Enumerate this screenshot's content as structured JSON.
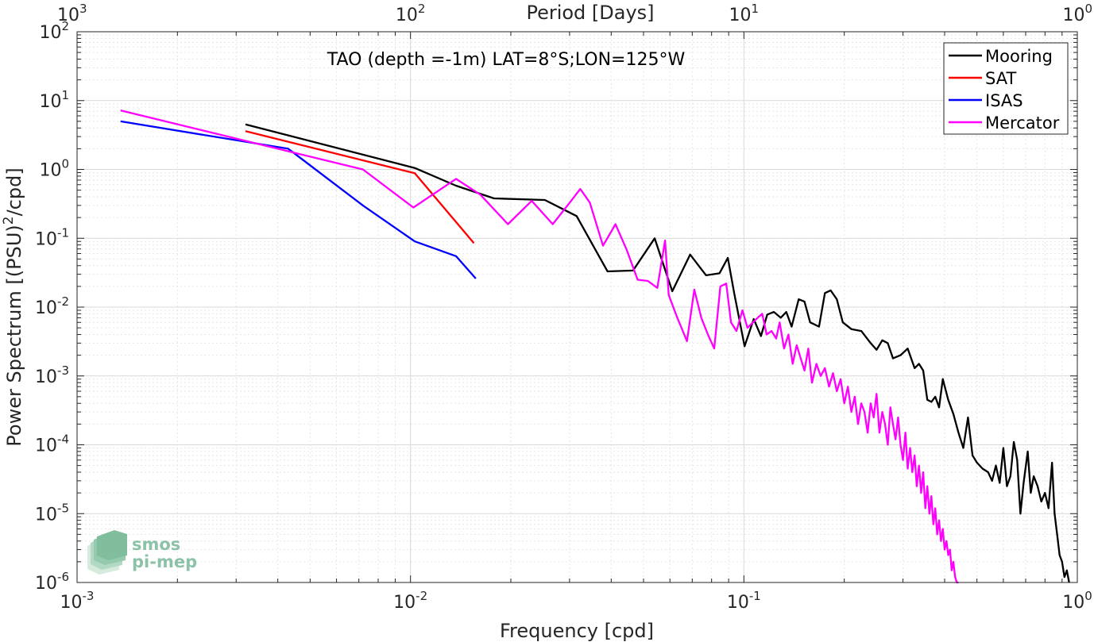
{
  "chart_data": {
    "type": "line",
    "title": "TAO (depth =-1m) LAT=8°S;LON=125°W",
    "xlabel": "Frequency [cpd]",
    "ylabel": "Power Spectrum [(PSU)",
    "ylabel_sup": "2",
    "ylabel_tail": "/cpd]",
    "x2label": "Period [Days]",
    "xscale": "log",
    "yscale": "log",
    "xlim": [
      0.001,
      1
    ],
    "ylim": [
      1e-06,
      100
    ],
    "grid": true,
    "legend_position": "top-right",
    "x_ticks": [
      {
        "base": "10",
        "exp": "-3"
      },
      {
        "base": "10",
        "exp": "-2"
      },
      {
        "base": "10",
        "exp": "-1"
      },
      {
        "base": "10",
        "exp": "0"
      }
    ],
    "y_ticks": [
      {
        "base": "10",
        "exp": "-6"
      },
      {
        "base": "10",
        "exp": "-5"
      },
      {
        "base": "10",
        "exp": "-4"
      },
      {
        "base": "10",
        "exp": "-3"
      },
      {
        "base": "10",
        "exp": "-2"
      },
      {
        "base": "10",
        "exp": "-1"
      },
      {
        "base": "10",
        "exp": "0"
      },
      {
        "base": "10",
        "exp": "1"
      },
      {
        "base": "10",
        "exp": "2"
      }
    ],
    "x2_ticks": [
      {
        "base": "10",
        "exp": "3"
      },
      {
        "base": "10",
        "exp": "2"
      },
      {
        "base": "10",
        "exp": "1"
      },
      {
        "base": "10",
        "exp": "0"
      }
    ],
    "series": [
      {
        "name": "Mooring",
        "color": "#000000",
        "points": [
          [
            0.0032,
            4.5
          ],
          [
            0.0103,
            1.05
          ],
          [
            0.0137,
            0.58
          ],
          [
            0.0178,
            0.38
          ],
          [
            0.0253,
            0.36
          ],
          [
            0.0315,
            0.21
          ],
          [
            0.039,
            0.033
          ],
          [
            0.0465,
            0.034
          ],
          [
            0.054,
            0.1
          ],
          [
            0.061,
            0.017
          ],
          [
            0.069,
            0.058
          ],
          [
            0.077,
            0.029
          ],
          [
            0.0845,
            0.031
          ],
          [
            0.0895,
            0.052
          ],
          [
            0.0935,
            0.016
          ],
          [
            0.1005,
            0.0027
          ],
          [
            0.107,
            0.0067
          ],
          [
            0.1125,
            0.0038
          ],
          [
            0.1175,
            0.0078
          ],
          [
            0.123,
            0.0085
          ],
          [
            0.129,
            0.007
          ],
          [
            0.134,
            0.0085
          ],
          [
            0.139,
            0.0052
          ],
          [
            0.146,
            0.013
          ],
          [
            0.152,
            0.012
          ],
          [
            0.158,
            0.006
          ],
          [
            0.168,
            0.0052
          ],
          [
            0.175,
            0.016
          ],
          [
            0.182,
            0.0175
          ],
          [
            0.19,
            0.013
          ],
          [
            0.198,
            0.006
          ],
          [
            0.21,
            0.0048
          ],
          [
            0.225,
            0.0045
          ],
          [
            0.24,
            0.003
          ],
          [
            0.25,
            0.0024
          ],
          [
            0.26,
            0.0033
          ],
          [
            0.27,
            0.003
          ],
          [
            0.28,
            0.0018
          ],
          [
            0.295,
            0.002
          ],
          [
            0.31,
            0.0025
          ],
          [
            0.325,
            0.0013
          ],
          [
            0.335,
            0.0015
          ],
          [
            0.345,
            0.0012
          ],
          [
            0.355,
            0.00045
          ],
          [
            0.365,
            0.00042
          ],
          [
            0.375,
            0.0005
          ],
          [
            0.385,
            0.00035
          ],
          [
            0.395,
            0.0009
          ],
          [
            0.41,
            0.00045
          ],
          [
            0.425,
            0.00028
          ],
          [
            0.44,
            0.00015
          ],
          [
            0.455,
            9e-05
          ],
          [
            0.47,
            0.00025
          ],
          [
            0.485,
            7e-05
          ],
          [
            0.5,
            5.5e-05
          ],
          [
            0.52,
            4.5e-05
          ],
          [
            0.54,
            4e-05
          ],
          [
            0.555,
            3e-05
          ],
          [
            0.57,
            5e-05
          ],
          [
            0.585,
            2.8e-05
          ],
          [
            0.6,
            9e-05
          ],
          [
            0.615,
            2.5e-05
          ],
          [
            0.63,
            3.5e-05
          ],
          [
            0.645,
            0.00011
          ],
          [
            0.66,
            6e-05
          ],
          [
            0.675,
            1e-05
          ],
          [
            0.69,
            2.8e-05
          ],
          [
            0.71,
            8e-05
          ],
          [
            0.725,
            2e-05
          ],
          [
            0.74,
            3.5e-05
          ],
          [
            0.76,
            2.5e-05
          ],
          [
            0.78,
            1.5e-05
          ],
          [
            0.8,
            2e-05
          ],
          [
            0.82,
            1.2e-05
          ],
          [
            0.84,
            5.5e-05
          ],
          [
            0.855,
            1e-05
          ],
          [
            0.87,
            5e-06
          ],
          [
            0.885,
            2.5e-06
          ],
          [
            0.9,
            2e-06
          ],
          [
            0.915,
            1.2e-06
          ],
          [
            0.93,
            1.5e-06
          ],
          [
            0.945,
            1e-06
          ]
        ]
      },
      {
        "name": "SAT",
        "color": "#ff0000",
        "points": [
          [
            0.0032,
            3.6
          ],
          [
            0.0103,
            0.88
          ],
          [
            0.0155,
            0.085
          ]
        ]
      },
      {
        "name": "ISAS",
        "color": "#0000ff",
        "points": [
          [
            0.00135,
            5.0
          ],
          [
            0.0043,
            2.0
          ],
          [
            0.0072,
            0.3
          ],
          [
            0.0103,
            0.09
          ],
          [
            0.0137,
            0.055
          ],
          [
            0.0157,
            0.026
          ]
        ]
      },
      {
        "name": "Mercator",
        "color": "#ff00ff",
        "points": [
          [
            0.00135,
            7.2
          ],
          [
            0.0072,
            1.0
          ],
          [
            0.0102,
            0.28
          ],
          [
            0.0137,
            0.73
          ],
          [
            0.0162,
            0.43
          ],
          [
            0.0196,
            0.16
          ],
          [
            0.0231,
            0.35
          ],
          [
            0.0267,
            0.16
          ],
          [
            0.0302,
            0.34
          ],
          [
            0.0323,
            0.52
          ],
          [
            0.0345,
            0.33
          ],
          [
            0.0378,
            0.078
          ],
          [
            0.0412,
            0.16
          ],
          [
            0.0445,
            0.068
          ],
          [
            0.048,
            0.025
          ],
          [
            0.0515,
            0.024
          ],
          [
            0.055,
            0.019
          ],
          [
            0.058,
            0.093
          ],
          [
            0.0595,
            0.015
          ],
          [
            0.063,
            0.0072
          ],
          [
            0.0675,
            0.0032
          ],
          [
            0.071,
            0.018
          ],
          [
            0.0745,
            0.007
          ],
          [
            0.078,
            0.004
          ],
          [
            0.0815,
            0.0025
          ],
          [
            0.085,
            0.02
          ],
          [
            0.0885,
            0.022
          ],
          [
            0.0915,
            0.006
          ],
          [
            0.095,
            0.0045
          ],
          [
            0.099,
            0.009
          ],
          [
            0.1025,
            0.005
          ],
          [
            0.1065,
            0.006
          ],
          [
            0.11,
            0.007
          ],
          [
            0.1135,
            0.008
          ],
          [
            0.117,
            0.004
          ],
          [
            0.121,
            0.0045
          ],
          [
            0.125,
            0.0035
          ],
          [
            0.128,
            0.006
          ],
          [
            0.132,
            0.0025
          ],
          [
            0.136,
            0.004
          ],
          [
            0.14,
            0.0015
          ],
          [
            0.144,
            0.0028
          ],
          [
            0.148,
            0.0018
          ],
          [
            0.152,
            0.0012
          ],
          [
            0.156,
            0.0025
          ],
          [
            0.16,
            0.0008
          ],
          [
            0.165,
            0.0015
          ],
          [
            0.17,
            0.001
          ],
          [
            0.175,
            0.0013
          ],
          [
            0.18,
            0.0007
          ],
          [
            0.185,
            0.0011
          ],
          [
            0.19,
            0.0006
          ],
          [
            0.195,
            0.0009
          ],
          [
            0.2,
            0.0004
          ],
          [
            0.205,
            0.0007
          ],
          [
            0.21,
            0.0003
          ],
          [
            0.215,
            0.0005
          ],
          [
            0.22,
            0.0002
          ],
          [
            0.225,
            0.0004
          ],
          [
            0.23,
            0.0003
          ],
          [
            0.235,
            0.00015
          ],
          [
            0.24,
            0.0004
          ],
          [
            0.245,
            0.00025
          ],
          [
            0.25,
            0.00055
          ],
          [
            0.255,
            0.00015
          ],
          [
            0.26,
            0.0003
          ],
          [
            0.265,
            0.0002
          ],
          [
            0.27,
            0.0001
          ],
          [
            0.275,
            0.00035
          ],
          [
            0.28,
            0.0002
          ],
          [
            0.285,
            0.00012
          ],
          [
            0.29,
            0.00025
          ],
          [
            0.295,
            0.0001
          ],
          [
            0.3,
            6e-05
          ],
          [
            0.305,
            0.00015
          ],
          [
            0.31,
            4.5e-05
          ],
          [
            0.315,
            9e-05
          ],
          [
            0.32,
            4e-05
          ],
          [
            0.325,
            7e-05
          ],
          [
            0.33,
            2.5e-05
          ],
          [
            0.335,
            5e-05
          ],
          [
            0.34,
            2e-05
          ],
          [
            0.345,
            4e-05
          ],
          [
            0.35,
            1.2e-05
          ],
          [
            0.355,
            2.5e-05
          ],
          [
            0.36,
            1e-05
          ],
          [
            0.365,
            1.8e-05
          ],
          [
            0.37,
            7e-06
          ],
          [
            0.375,
            1.2e-05
          ],
          [
            0.38,
            5e-06
          ],
          [
            0.385,
            8e-06
          ],
          [
            0.39,
            4e-06
          ],
          [
            0.395,
            6e-06
          ],
          [
            0.4,
            3e-06
          ],
          [
            0.405,
            4e-06
          ],
          [
            0.41,
            2.5e-06
          ],
          [
            0.415,
            3e-06
          ],
          [
            0.42,
            1.5e-06
          ],
          [
            0.425,
            2e-06
          ],
          [
            0.43,
            1.2e-06
          ],
          [
            0.435,
            1e-06
          ],
          [
            0.44,
            1e-06
          ]
        ]
      }
    ]
  },
  "watermark": {
    "line1": "smos",
    "line2": "pi-mep"
  }
}
